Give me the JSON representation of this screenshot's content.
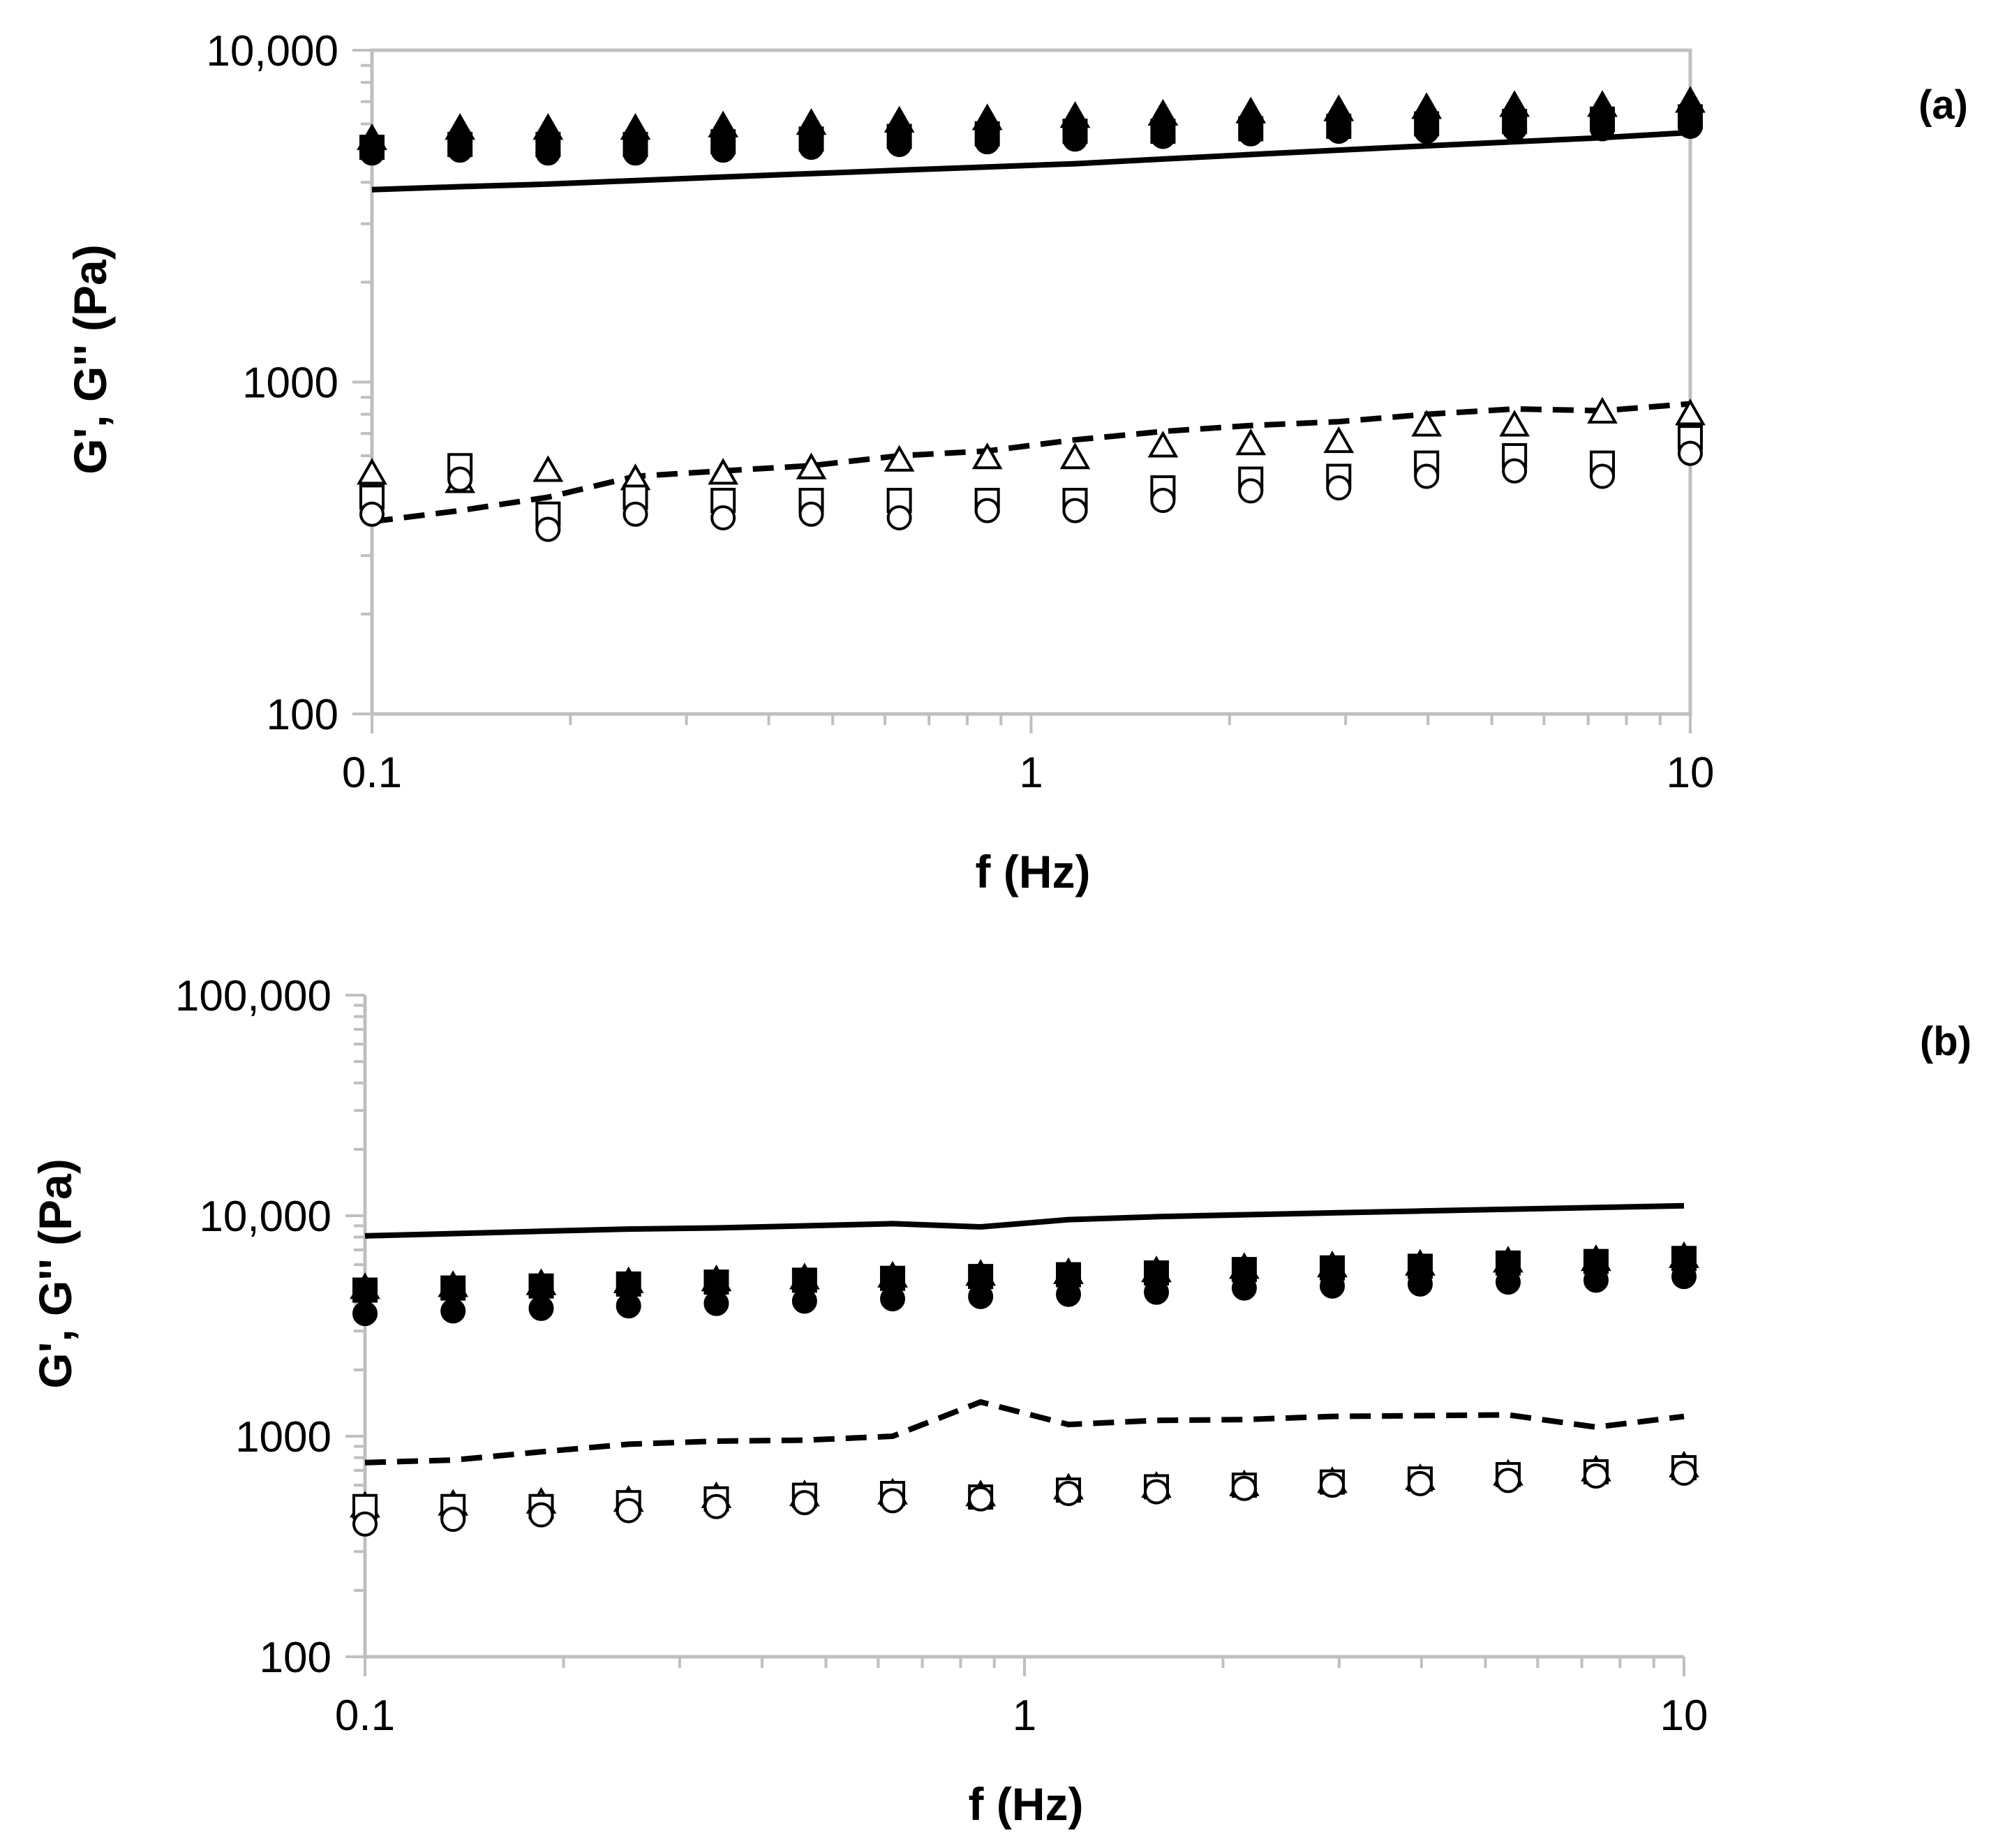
{
  "chart_data": [
    {
      "type": "scatter",
      "panel_label": "(a)",
      "xlabel": "f (Hz)",
      "ylabel": "G', G'' (Pa)",
      "x_scale": "log",
      "y_scale": "log",
      "xlim": [
        0.1,
        10
      ],
      "ylim": [
        100,
        10000
      ],
      "xticks": [
        {
          "v": 0.1,
          "label": "0.1"
        },
        {
          "v": 1,
          "label": "1"
        },
        {
          "v": 10,
          "label": "10"
        }
      ],
      "yticks": [
        {
          "v": 100,
          "label": "100"
        },
        {
          "v": 1000,
          "label": "1000"
        },
        {
          "v": 10000,
          "label": "10,000"
        }
      ],
      "grid": false,
      "legend": "none",
      "x": [
        0.1,
        0.136,
        0.185,
        0.251,
        0.341,
        0.464,
        0.631,
        0.858,
        1.166,
        1.585,
        2.154,
        2.929,
        3.981,
        5.412,
        7.356,
        10
      ],
      "series": [
        {
          "marker": "triangle",
          "filled": true,
          "values": [
            5400,
            5800,
            5800,
            5800,
            5900,
            6000,
            6100,
            6200,
            6300,
            6400,
            6500,
            6600,
            6700,
            6800,
            6800,
            7000
          ]
        },
        {
          "marker": "square",
          "filled": true,
          "values": [
            5100,
            5200,
            5200,
            5200,
            5300,
            5400,
            5500,
            5600,
            5700,
            5700,
            5800,
            5900,
            6000,
            6100,
            6200,
            6300
          ]
        },
        {
          "marker": "circle",
          "filled": true,
          "values": [
            4900,
            5000,
            4900,
            4900,
            5000,
            5100,
            5200,
            5300,
            5400,
            5500,
            5600,
            5700,
            5700,
            5800,
            5800,
            5900
          ]
        },
        {
          "marker": "triangle",
          "filled": false,
          "values": [
            530,
            500,
            540,
            510,
            530,
            550,
            580,
            590,
            590,
            640,
            650,
            660,
            740,
            740,
            810,
            800
          ]
        },
        {
          "marker": "square",
          "filled": false,
          "values": [
            450,
            560,
            400,
            450,
            440,
            440,
            440,
            440,
            440,
            480,
            510,
            520,
            570,
            600,
            570,
            680
          ]
        },
        {
          "marker": "circle",
          "filled": false,
          "values": [
            400,
            510,
            360,
            400,
            390,
            400,
            390,
            410,
            410,
            440,
            470,
            480,
            520,
            540,
            520,
            610
          ]
        },
        {
          "line": "solid",
          "values": [
            3800,
            3880,
            3950,
            4050,
            4150,
            4250,
            4350,
            4450,
            4550,
            4700,
            4850,
            5000,
            5150,
            5300,
            5450,
            5650
          ]
        },
        {
          "line": "dashed",
          "values": [
            380,
            410,
            450,
            520,
            540,
            560,
            600,
            620,
            670,
            710,
            740,
            760,
            800,
            830,
            820,
            860
          ]
        }
      ]
    },
    {
      "type": "scatter",
      "panel_label": "(b)",
      "xlabel": "f (Hz)",
      "ylabel": "G', G'' (Pa)",
      "x_scale": "log",
      "y_scale": "log",
      "xlim": [
        0.1,
        10
      ],
      "ylim": [
        100,
        100000
      ],
      "xticks": [
        {
          "v": 0.1,
          "label": "0.1"
        },
        {
          "v": 1,
          "label": "1"
        },
        {
          "v": 10,
          "label": "10"
        }
      ],
      "yticks": [
        {
          "v": 100,
          "label": "100"
        },
        {
          "v": 1000,
          "label": "1000"
        },
        {
          "v": 10000,
          "label": "10,000"
        },
        {
          "v": 100000,
          "label": "100,000"
        }
      ],
      "grid": false,
      "legend": "none",
      "x": [
        0.1,
        0.136,
        0.185,
        0.251,
        0.341,
        0.464,
        0.631,
        0.858,
        1.166,
        1.585,
        2.154,
        2.929,
        3.981,
        5.412,
        7.356,
        10
      ],
      "series": [
        {
          "marker": "triangle",
          "filled": true,
          "values": [
            4700,
            4800,
            4900,
            5000,
            5100,
            5200,
            5300,
            5400,
            5500,
            5600,
            5800,
            5900,
            6000,
            6200,
            6300,
            6500
          ]
        },
        {
          "marker": "square",
          "filled": true,
          "values": [
            4600,
            4700,
            4800,
            4900,
            5000,
            5100,
            5200,
            5300,
            5400,
            5500,
            5700,
            5800,
            5900,
            6100,
            6200,
            6400
          ]
        },
        {
          "marker": "circle",
          "filled": true,
          "values": [
            3600,
            3700,
            3800,
            3900,
            4000,
            4100,
            4200,
            4300,
            4400,
            4500,
            4700,
            4800,
            4900,
            5000,
            5100,
            5300
          ]
        },
        {
          "marker": "triangle",
          "filled": false,
          "values": [
            480,
            490,
            500,
            510,
            530,
            540,
            550,
            540,
            580,
            590,
            600,
            620,
            640,
            670,
            700,
            730
          ]
        },
        {
          "marker": "square",
          "filled": false,
          "values": [
            480,
            480,
            480,
            500,
            520,
            540,
            550,
            530,
            570,
            590,
            600,
            620,
            640,
            670,
            690,
            720
          ]
        },
        {
          "marker": "circle",
          "filled": false,
          "values": [
            400,
            420,
            440,
            460,
            480,
            500,
            510,
            520,
            550,
            560,
            580,
            600,
            610,
            630,
            660,
            680
          ]
        },
        {
          "line": "solid",
          "values": [
            8100,
            8300,
            8500,
            8700,
            8800,
            9000,
            9200,
            8900,
            9600,
            9900,
            10100,
            10300,
            10500,
            10700,
            10900,
            11100
          ]
        },
        {
          "line": "dashed",
          "values": [
            760,
            780,
            850,
            920,
            950,
            960,
            1000,
            1430,
            1130,
            1180,
            1190,
            1230,
            1240,
            1250,
            1100,
            1230
          ]
        }
      ]
    }
  ]
}
